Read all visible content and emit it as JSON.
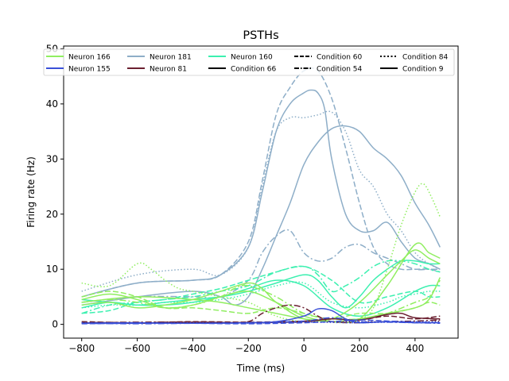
{
  "chart_data": {
    "type": "line",
    "title": "PSTHs",
    "xlabel": "Time (ms)",
    "ylabel": "Firing rate (Hz)",
    "xlim": [
      -865,
      555
    ],
    "ylim": [
      -2.5,
      50.5
    ],
    "xticks": [
      -800,
      -600,
      -400,
      -200,
      0,
      200,
      400
    ],
    "yticks": [
      0,
      10,
      20,
      30,
      40,
      50
    ],
    "grid": false,
    "legend_position": "top",
    "legend": [
      {
        "label": "Neuron 166",
        "color": "#90ee60",
        "dash": "solid"
      },
      {
        "label": "Neuron 155",
        "color": "#3a50d8",
        "dash": "solid"
      },
      {
        "label": "Neuron 181",
        "color": "#8eaec8",
        "dash": "solid"
      },
      {
        "label": "Neuron 81",
        "color": "#6b2030",
        "dash": "solid"
      },
      {
        "label": "Neuron 160",
        "color": "#3cf0b0",
        "dash": "solid"
      },
      {
        "label": "Condition 66",
        "color": "#000000",
        "dash": "solid"
      },
      {
        "label": "Condition 60",
        "color": "#000000",
        "dash": "dashed"
      },
      {
        "label": "Condition 54",
        "color": "#000000",
        "dash": "dashdot"
      },
      {
        "label": "Condition 84",
        "color": "#000000",
        "dash": "dotted"
      },
      {
        "label": "Condition 9",
        "color": "#000000",
        "dash": "solid"
      }
    ],
    "series": [
      {
        "color": "#8eaec8",
        "dash": "dashed",
        "x": [
          -800,
          -600,
          -400,
          -300,
          -200,
          -150,
          -100,
          -50,
          0,
          50,
          100,
          150,
          200,
          250,
          300,
          350,
          400,
          450,
          490
        ],
        "y": [
          5,
          7.5,
          8,
          9,
          15,
          26,
          38,
          43,
          46,
          46,
          41,
          32,
          22,
          14,
          11,
          10,
          10,
          10,
          9.5
        ]
      },
      {
        "color": "#8eaec8",
        "dash": "solid",
        "x": [
          -800,
          -600,
          -400,
          -300,
          -200,
          -150,
          -100,
          -50,
          0,
          25,
          50,
          75,
          100,
          150,
          200,
          250,
          300,
          350,
          400,
          450,
          490
        ],
        "y": [
          5,
          7.5,
          8,
          9,
          14,
          24,
          35,
          40,
          42,
          42.5,
          42,
          39,
          30,
          20,
          17,
          17,
          18.5,
          15,
          12,
          11,
          10
        ]
      },
      {
        "color": "#8eaec8",
        "dash": "dotted",
        "x": [
          -800,
          -600,
          -400,
          -300,
          -200,
          -150,
          -100,
          -50,
          0,
          50,
          100,
          150,
          200,
          250,
          300,
          350,
          400,
          450,
          490
        ],
        "y": [
          6,
          9,
          10,
          9,
          14,
          25,
          35,
          37.5,
          37.5,
          38,
          38.5,
          35,
          28,
          25,
          20,
          17,
          13,
          11,
          10
        ]
      },
      {
        "color": "#8eaec8",
        "dash": "solid",
        "x": [
          -800,
          -600,
          -400,
          -300,
          -250,
          -200,
          -150,
          -100,
          -50,
          0,
          50,
          100,
          150,
          200,
          250,
          300,
          350,
          400,
          450,
          490
        ],
        "y": [
          3.5,
          5,
          6,
          5,
          3.5,
          5,
          10,
          16,
          22,
          29,
          33,
          35.5,
          36,
          35,
          32,
          30,
          27,
          22,
          18,
          14
        ]
      },
      {
        "color": "#8eaec8",
        "dash": "dashdot",
        "x": [
          -800,
          -600,
          -400,
          -300,
          -200,
          -150,
          -100,
          -50,
          0,
          50,
          100,
          150,
          200,
          250,
          300,
          350,
          400,
          450,
          490
        ],
        "y": [
          4,
          5,
          5,
          5,
          8,
          13,
          16,
          17,
          13,
          11.5,
          12,
          14,
          14.5,
          13,
          12,
          11,
          10,
          10,
          10
        ]
      },
      {
        "color": "#3cf0b0",
        "dash": "solid",
        "x": [
          -800,
          -700,
          -600,
          -500,
          -400,
          -300,
          -200,
          -100,
          0,
          50,
          100,
          150,
          200,
          250,
          300,
          350,
          400,
          450,
          490
        ],
        "y": [
          3,
          4,
          3.5,
          4,
          4.5,
          5,
          6,
          7.5,
          9,
          8,
          5,
          3,
          5,
          8,
          10,
          11.5,
          11.5,
          11,
          11
        ]
      },
      {
        "color": "#3cf0b0",
        "dash": "dashdot",
        "x": [
          -800,
          -700,
          -600,
          -500,
          -400,
          -300,
          -200,
          -100,
          0,
          50,
          100,
          150,
          200,
          250,
          300,
          350,
          400,
          450,
          490
        ],
        "y": [
          2,
          3.5,
          4,
          4.5,
          5,
          6,
          7,
          9.5,
          10.5,
          9,
          6,
          7,
          8.5,
          10.5,
          11.5,
          11.5,
          11,
          10,
          9.5
        ]
      },
      {
        "color": "#3cf0b0",
        "dash": "dashed",
        "x": [
          -800,
          -700,
          -600,
          -500,
          -400,
          -300,
          -200,
          -100,
          0,
          100,
          200,
          300,
          400,
          450,
          490
        ],
        "y": [
          2,
          2.5,
          4,
          4.5,
          5.5,
          6.5,
          8,
          9.5,
          10.5,
          8,
          4,
          5,
          6,
          5,
          5
        ]
      },
      {
        "color": "#3cf0b0",
        "dash": "dotted",
        "x": [
          -800,
          -700,
          -600,
          -500,
          -400,
          -300,
          -200,
          -100,
          0,
          100,
          200,
          300,
          350,
          400,
          450,
          490
        ],
        "y": [
          3,
          3.5,
          3.5,
          4,
          4,
          4.5,
          5.5,
          7,
          7.5,
          4,
          3,
          4,
          5,
          5.5,
          6,
          6
        ]
      },
      {
        "color": "#3cf0b0",
        "dash": "solid",
        "x": [
          -800,
          -700,
          -600,
          -500,
          -400,
          -300,
          -200,
          -100,
          0,
          100,
          200,
          300,
          400,
          450,
          490
        ],
        "y": [
          4.5,
          4,
          3.5,
          3.5,
          4,
          5,
          6.5,
          8,
          7,
          3,
          1.5,
          3,
          6,
          7,
          7
        ]
      },
      {
        "color": "#90ee60",
        "dash": "dotted",
        "x": [
          -800,
          -700,
          -600,
          -550,
          -500,
          -450,
          -400,
          -300,
          -200,
          -100,
          0,
          100,
          200,
          250,
          300,
          350,
          400,
          430,
          460,
          490
        ],
        "y": [
          7.5,
          7,
          11,
          10,
          8,
          6.5,
          6,
          5,
          4,
          1.5,
          0.5,
          1,
          1,
          3,
          10,
          18,
          24,
          25.5,
          23,
          19.5
        ]
      },
      {
        "color": "#90ee60",
        "dash": "solid",
        "x": [
          -800,
          -700,
          -600,
          -500,
          -400,
          -300,
          -200,
          -100,
          0,
          100,
          200,
          300,
          400,
          450,
          490
        ],
        "y": [
          4.5,
          5.5,
          4.5,
          3,
          3.5,
          5,
          6,
          4,
          1.5,
          0.5,
          1,
          7,
          14.5,
          13,
          12
        ]
      },
      {
        "color": "#90ee60",
        "dash": "solid",
        "x": [
          -800,
          -700,
          -600,
          -500,
          -400,
          -300,
          -200,
          -150,
          -100,
          0,
          100,
          200,
          300,
          350,
          400,
          450,
          490
        ],
        "y": [
          3.5,
          4,
          3,
          3.5,
          4.5,
          6,
          7.5,
          6.5,
          4,
          1,
          1,
          4,
          9,
          11.5,
          13.5,
          12,
          11
        ]
      },
      {
        "color": "#90ee60",
        "dash": "dashed",
        "x": [
          -800,
          -700,
          -600,
          -500,
          -400,
          -300,
          -200,
          -100,
          0,
          100,
          200,
          300,
          400,
          450,
          490
        ],
        "y": [
          5,
          6,
          5,
          3,
          3,
          2.5,
          2,
          3,
          2,
          1,
          2,
          2,
          3,
          4,
          3.5
        ]
      },
      {
        "color": "#90ee60",
        "dash": "dashdot",
        "x": [
          -800,
          -700,
          -600,
          -500,
          -400,
          -300,
          -250,
          -200,
          -100,
          0,
          100,
          200,
          300,
          400,
          450,
          490
        ],
        "y": [
          4,
          4.5,
          4,
          3,
          3.5,
          5,
          6.5,
          7,
          5,
          2,
          1,
          1,
          2,
          4,
          5,
          8
        ]
      },
      {
        "color": "#90ee60",
        "dash": "solid",
        "x": [
          -800,
          -600,
          -400,
          -300,
          -200,
          -100,
          0,
          100,
          200,
          300,
          400,
          450,
          490
        ],
        "y": [
          4,
          5,
          4.5,
          4,
          3,
          2,
          1,
          0.5,
          1,
          2,
          3,
          4.5,
          8.5
        ]
      },
      {
        "color": "#6b2030",
        "dash": "dashdot",
        "x": [
          -800,
          -600,
          -400,
          -300,
          -200,
          -150,
          -100,
          -50,
          0,
          50,
          100,
          200,
          300,
          400,
          490
        ],
        "y": [
          0.3,
          0.4,
          0.4,
          0.3,
          0.5,
          2,
          3,
          3.5,
          3,
          1.5,
          0.5,
          0.3,
          0.5,
          0.6,
          0.8
        ]
      },
      {
        "color": "#6b2030",
        "dash": "dashed",
        "x": [
          -800,
          -600,
          -400,
          -200,
          0,
          100,
          200,
          300,
          400,
          490
        ],
        "y": [
          0.5,
          0.3,
          0.5,
          0.4,
          0.6,
          1,
          0.8,
          1.5,
          1,
          1.5
        ]
      },
      {
        "color": "#6b2030",
        "dash": "solid",
        "x": [
          -800,
          -600,
          -400,
          -200,
          0,
          100,
          200,
          300,
          350,
          400,
          490
        ],
        "y": [
          0.3,
          0.2,
          0.4,
          0.3,
          0.5,
          1,
          0.8,
          1.8,
          2,
          1.2,
          1
        ]
      },
      {
        "color": "#6b2030",
        "dash": "dotted",
        "x": [
          -800,
          -600,
          -400,
          -200,
          0,
          200,
          400,
          490
        ],
        "y": [
          0.2,
          0.3,
          0.2,
          0.3,
          0.4,
          0.5,
          0.4,
          0.6
        ]
      },
      {
        "color": "#3a50d8",
        "dash": "solid",
        "x": [
          -800,
          -600,
          -400,
          -200,
          -100,
          0,
          50,
          100,
          150,
          200,
          300,
          400,
          490
        ],
        "y": [
          0.2,
          0.3,
          0.2,
          0.3,
          0.5,
          1.5,
          2.8,
          2.5,
          1,
          0.3,
          0.5,
          0.3,
          0.3
        ]
      },
      {
        "color": "#3a50d8",
        "dash": "dashed",
        "x": [
          -800,
          -600,
          -400,
          -200,
          0,
          100,
          200,
          300,
          400,
          490
        ],
        "y": [
          0.1,
          0.2,
          0.2,
          0.1,
          0.3,
          0.5,
          0.8,
          0.6,
          0.4,
          0.3
        ]
      },
      {
        "color": "#3a50d8",
        "dash": "dotted",
        "x": [
          -800,
          -600,
          -400,
          -200,
          0,
          200,
          400,
          490
        ],
        "y": [
          0.3,
          0.2,
          0.3,
          0.2,
          0.4,
          0.3,
          0.5,
          0.4
        ]
      },
      {
        "color": "#3a50d8",
        "dash": "dashdot",
        "x": [
          -800,
          -600,
          -400,
          -200,
          0,
          100,
          200,
          300,
          400,
          490
        ],
        "y": [
          0.2,
          0.1,
          0.2,
          0.3,
          0.6,
          1.2,
          0.5,
          0.4,
          0.3,
          0.2
        ]
      }
    ]
  }
}
